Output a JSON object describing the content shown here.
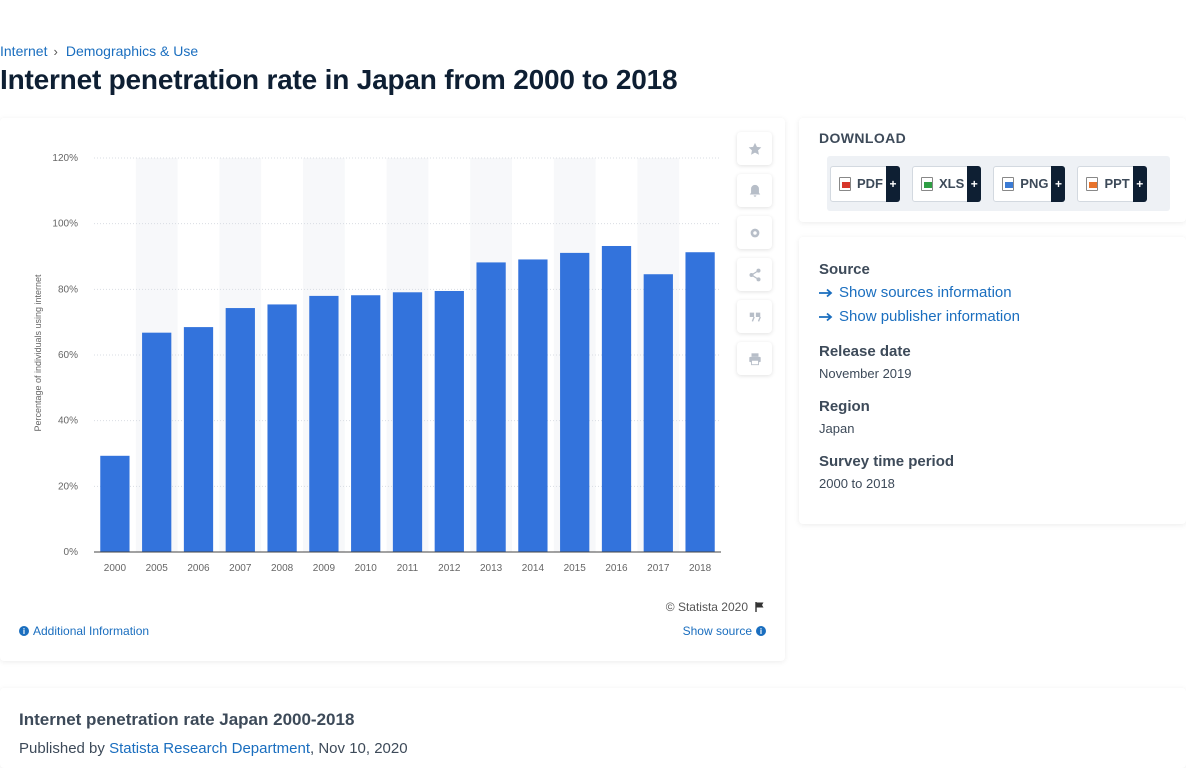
{
  "breadcrumb": {
    "items": [
      "Internet",
      "Demographics & Use"
    ],
    "separator": "›"
  },
  "page_title": "Internet penetration rate in Japan from 2000 to 2018",
  "chart_data": {
    "type": "bar",
    "categories": [
      "2000",
      "2005",
      "2006",
      "2007",
      "2008",
      "2009",
      "2010",
      "2011",
      "2012",
      "2013",
      "2014",
      "2015",
      "2016",
      "2017",
      "2018"
    ],
    "values": [
      29.3,
      66.8,
      68.5,
      74.3,
      75.4,
      78,
      78.2,
      79.1,
      79.5,
      88.2,
      89.1,
      91.1,
      93.2,
      84.6,
      91.3
    ],
    "ylabel": "Percentage of individuals using internet",
    "ylim": [
      0,
      120
    ],
    "yticks": [
      "0%",
      "20%",
      "40%",
      "60%",
      "80%",
      "100%",
      "120%"
    ],
    "grid": true,
    "bar_color": "#3373dc"
  },
  "chart_footer": {
    "credit": "© Statista 2020",
    "additional_info": "Additional Information",
    "show_source": "Show source"
  },
  "tools": [
    "star-icon",
    "bell-icon",
    "gear-icon",
    "share-icon",
    "quote-icon",
    "print-icon"
  ],
  "download": {
    "title": "DOWNLOAD",
    "buttons": [
      {
        "label": "PDF",
        "icon": "pdf-file-icon"
      },
      {
        "label": "XLS",
        "icon": "xls-file-icon"
      },
      {
        "label": "PNG",
        "icon": "png-file-icon"
      },
      {
        "label": "PPT",
        "icon": "ppt-file-icon"
      }
    ],
    "plus": "+"
  },
  "meta": {
    "source_label": "Source",
    "show_sources": "Show sources information",
    "show_publisher": "Show publisher information",
    "release_label": "Release date",
    "release_value": "November 2019",
    "region_label": "Region",
    "region_value": "Japan",
    "survey_label": "Survey time period",
    "survey_value": "2000 to 2018"
  },
  "bottom": {
    "title": "Internet penetration rate Japan 2000-2018",
    "published_prefix": "Published by",
    "publisher": "Statista Research Department",
    "date": ", Nov 10, 2020"
  }
}
